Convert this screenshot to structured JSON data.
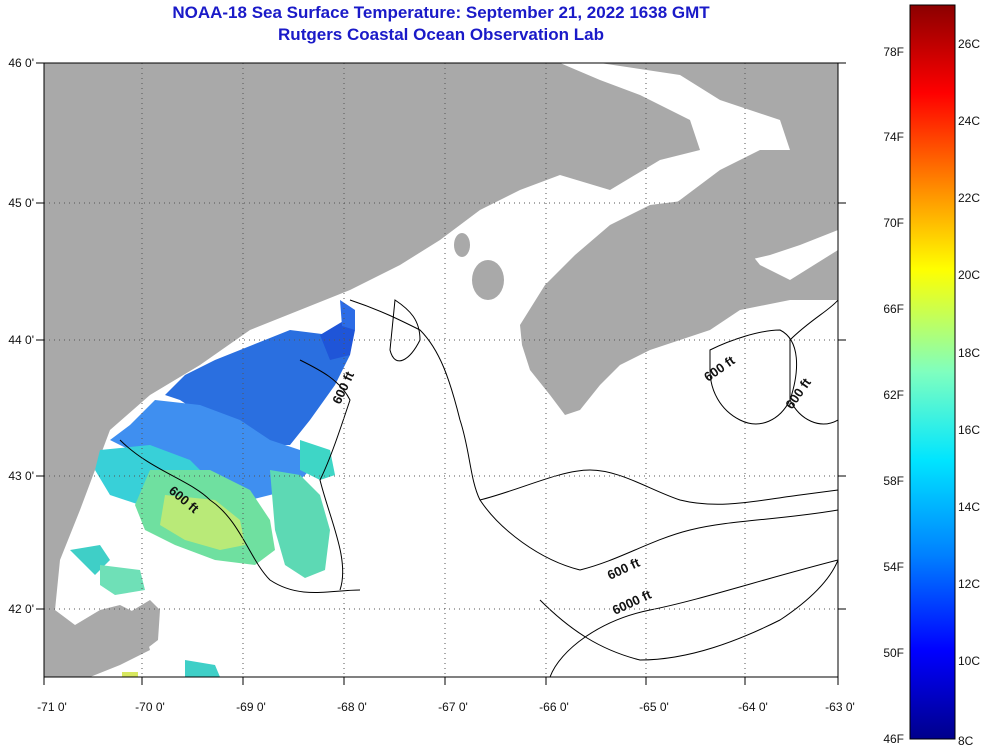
{
  "title": {
    "line1": "NOAA-18 Sea Surface Temperature:  September 21, 2022 1638 GMT",
    "line2": "Rutgers Coastal Ocean Observation Lab"
  },
  "axes": {
    "longitude_ticks": [
      "-71 0'",
      "-70 0'",
      "-69 0'",
      "-68 0'",
      "-67 0'",
      "-66 0'",
      "-65 0'",
      "-64 0'",
      "-63 0'"
    ],
    "latitude_ticks": [
      "46 0'",
      "45 0'",
      "44 0'",
      "43 0'",
      "42 0'"
    ]
  },
  "contour_labels": [
    "600 ft",
    "600 ft",
    "600 ft",
    "600 ft",
    "600 ft",
    "6000 ft"
  ],
  "colorbar": {
    "fahrenheit_ticks": [
      "78F",
      "74F",
      "70F",
      "66F",
      "62F",
      "58F",
      "54F",
      "50F",
      "46F"
    ],
    "celsius_ticks": [
      "26C",
      "24C",
      "22C",
      "20C",
      "18C",
      "16C",
      "14C",
      "12C",
      "10C",
      "8C"
    ],
    "gradient_stops": [
      "#8b0000",
      "#ff0000",
      "#ff8c00",
      "#ffff00",
      "#7fffbf",
      "#00e5ff",
      "#0080ff",
      "#0000ff",
      "#00008b"
    ]
  },
  "colors": {
    "land": "#a9a9a9",
    "ocean": "#ffffff",
    "title": "#1a1ac8",
    "grid": "#555555"
  }
}
